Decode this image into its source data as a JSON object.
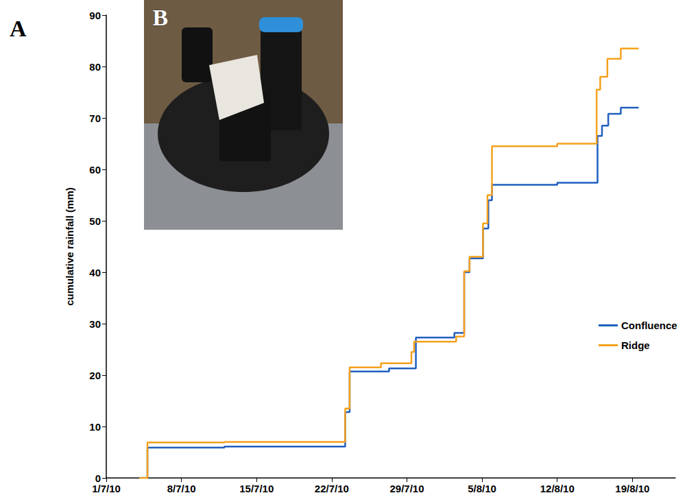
{
  "chart_data": {
    "type": "line",
    "y_label": "cumulative rainfall (mm)",
    "annotations": [
      "A",
      "B"
    ],
    "xlim": [
      "2010-07-01",
      "2010-08-23"
    ],
    "xticks": [
      {
        "value": "2010-07-01",
        "label": "1/7/10"
      },
      {
        "value": "2010-07-08",
        "label": "8/7/10"
      },
      {
        "value": "2010-07-15",
        "label": "15/7/10"
      },
      {
        "value": "2010-07-22",
        "label": "22/7/10"
      },
      {
        "value": "2010-07-29",
        "label": "29/7/10"
      },
      {
        "value": "2010-08-05",
        "label": "5/8/10"
      },
      {
        "value": "2010-08-12",
        "label": "12/8/10"
      },
      {
        "value": "2010-08-19",
        "label": "19/8/10"
      }
    ],
    "ylim": [
      0,
      90
    ],
    "yticks": [
      0,
      10,
      20,
      30,
      40,
      50,
      60,
      70,
      80,
      90
    ],
    "grid": false,
    "legend": "right",
    "series": [
      {
        "name": "Confluence",
        "color": "#1f5fbf",
        "line_style": "solid",
        "x": [
          "2010-07-04 02:00",
          "2010-07-04 20:00",
          "2010-07-12 00:00",
          "2010-07-23 06:00",
          "2010-07-23 16:00",
          "2010-07-27 08:00",
          "2010-07-29 20:00",
          "2010-08-02 10:00",
          "2010-08-03 08:00",
          "2010-08-03 20:00",
          "2010-08-05 02:00",
          "2010-08-05 14:00",
          "2010-08-05 22:00",
          "2010-08-12 00:00",
          "2010-08-15 18:00",
          "2010-08-16 04:00",
          "2010-08-16 18:00",
          "2010-08-17 22:00",
          "2010-08-19 14:00"
        ],
        "values": [
          0,
          5.9,
          6.1,
          12.8,
          20.7,
          21.3,
          27.3,
          28.2,
          40.0,
          42.7,
          48.5,
          54,
          57.0,
          57.4,
          66.5,
          68.5,
          70.8,
          72.0,
          72.0
        ]
      },
      {
        "name": "Ridge",
        "color": "#f5a11c",
        "line_style": "solid",
        "x": [
          "2010-07-04 02:00",
          "2010-07-04 20:00",
          "2010-07-12 00:00",
          "2010-07-23 06:00",
          "2010-07-23 16:00",
          "2010-07-26 14:00",
          "2010-07-29 10:00",
          "2010-07-29 16:00",
          "2010-08-02 14:00",
          "2010-08-03 08:00",
          "2010-08-03 20:00",
          "2010-08-05 02:00",
          "2010-08-05 12:00",
          "2010-08-05 22:00",
          "2010-08-12 00:00",
          "2010-08-15 16:00",
          "2010-08-16 00:00",
          "2010-08-16 16:00",
          "2010-08-17 22:00",
          "2010-08-19 14:00"
        ],
        "values": [
          0,
          6.9,
          7.0,
          13.5,
          21.5,
          22.3,
          24.5,
          26.5,
          27.5,
          40.2,
          43.0,
          49.5,
          55,
          64.5,
          65.0,
          75.5,
          78.0,
          81.5,
          83.5,
          83.5
        ]
      }
    ]
  }
}
